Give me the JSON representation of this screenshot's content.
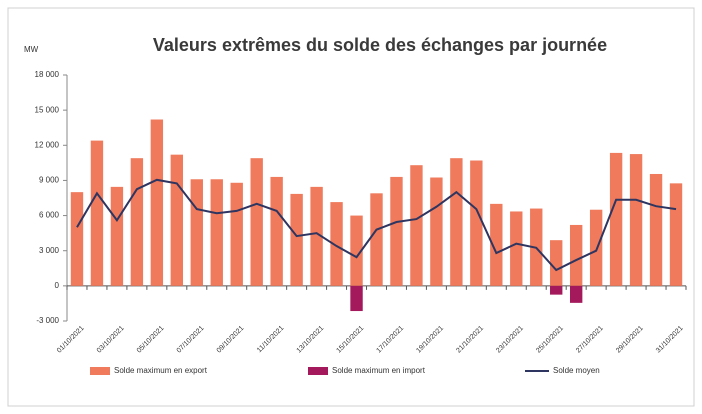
{
  "chart_data": {
    "type": "bar_line",
    "title": "Valeurs extrêmes du solde des échanges par journée",
    "y_axis_label": "MW",
    "categories": [
      "01/10/2021",
      null,
      "03/10/2021",
      null,
      "05/10/2021",
      null,
      "07/10/2021",
      null,
      "09/10/2021",
      null,
      "11/10/2021",
      null,
      "13/10/2021",
      null,
      "15/10/2021",
      null,
      "17/10/2021",
      null,
      "19/10/2021",
      null,
      "21/10/2021",
      null,
      "23/10/2021",
      null,
      "25/10/2021",
      null,
      "27/10/2021",
      null,
      "29/10/2021",
      null,
      "31/10/2021"
    ],
    "series": [
      {
        "name": "Solde maximum en export",
        "type": "bar",
        "color": "#ef7b5c",
        "values": [
          8000,
          12400,
          8450,
          10900,
          14200,
          11200,
          9100,
          9100,
          8800,
          10900,
          9300,
          7850,
          8450,
          7150,
          6000,
          7900,
          9300,
          10300,
          9250,
          10900,
          10700,
          7000,
          6350,
          6600,
          3900,
          5200,
          6500,
          11350,
          11250,
          9550,
          8750
        ]
      },
      {
        "name": "Solde maximum en import",
        "type": "bar",
        "color": "#a3195b",
        "values": [
          null,
          null,
          null,
          null,
          null,
          null,
          null,
          null,
          null,
          null,
          null,
          null,
          null,
          null,
          -2150,
          null,
          null,
          null,
          null,
          null,
          null,
          null,
          null,
          null,
          -750,
          -1450,
          null,
          null,
          null,
          null,
          null
        ]
      },
      {
        "name": "Solde moyen",
        "type": "line",
        "color": "#2e3560",
        "values": [
          5000,
          7900,
          5600,
          8250,
          9050,
          8750,
          6550,
          6200,
          6400,
          7000,
          6400,
          4250,
          4500,
          3400,
          2450,
          4800,
          5450,
          5700,
          6750,
          8000,
          6550,
          2800,
          3600,
          3250,
          1350,
          2200,
          3000,
          7350,
          7350,
          6800,
          6550
        ]
      }
    ],
    "ylim": [
      -3000,
      18000
    ],
    "yticks": [
      {
        "value": -3000,
        "label": "-3 000"
      },
      0,
      {
        "value": 3000,
        "label": "3 000"
      },
      {
        "value": 6000,
        "label": "6 000"
      },
      {
        "value": 9000,
        "label": "9 000"
      },
      {
        "value": 12000,
        "label": "12 000"
      },
      {
        "value": 15000,
        "label": "15 000"
      },
      {
        "value": 18000,
        "label": "18 000"
      }
    ],
    "grid": false
  }
}
